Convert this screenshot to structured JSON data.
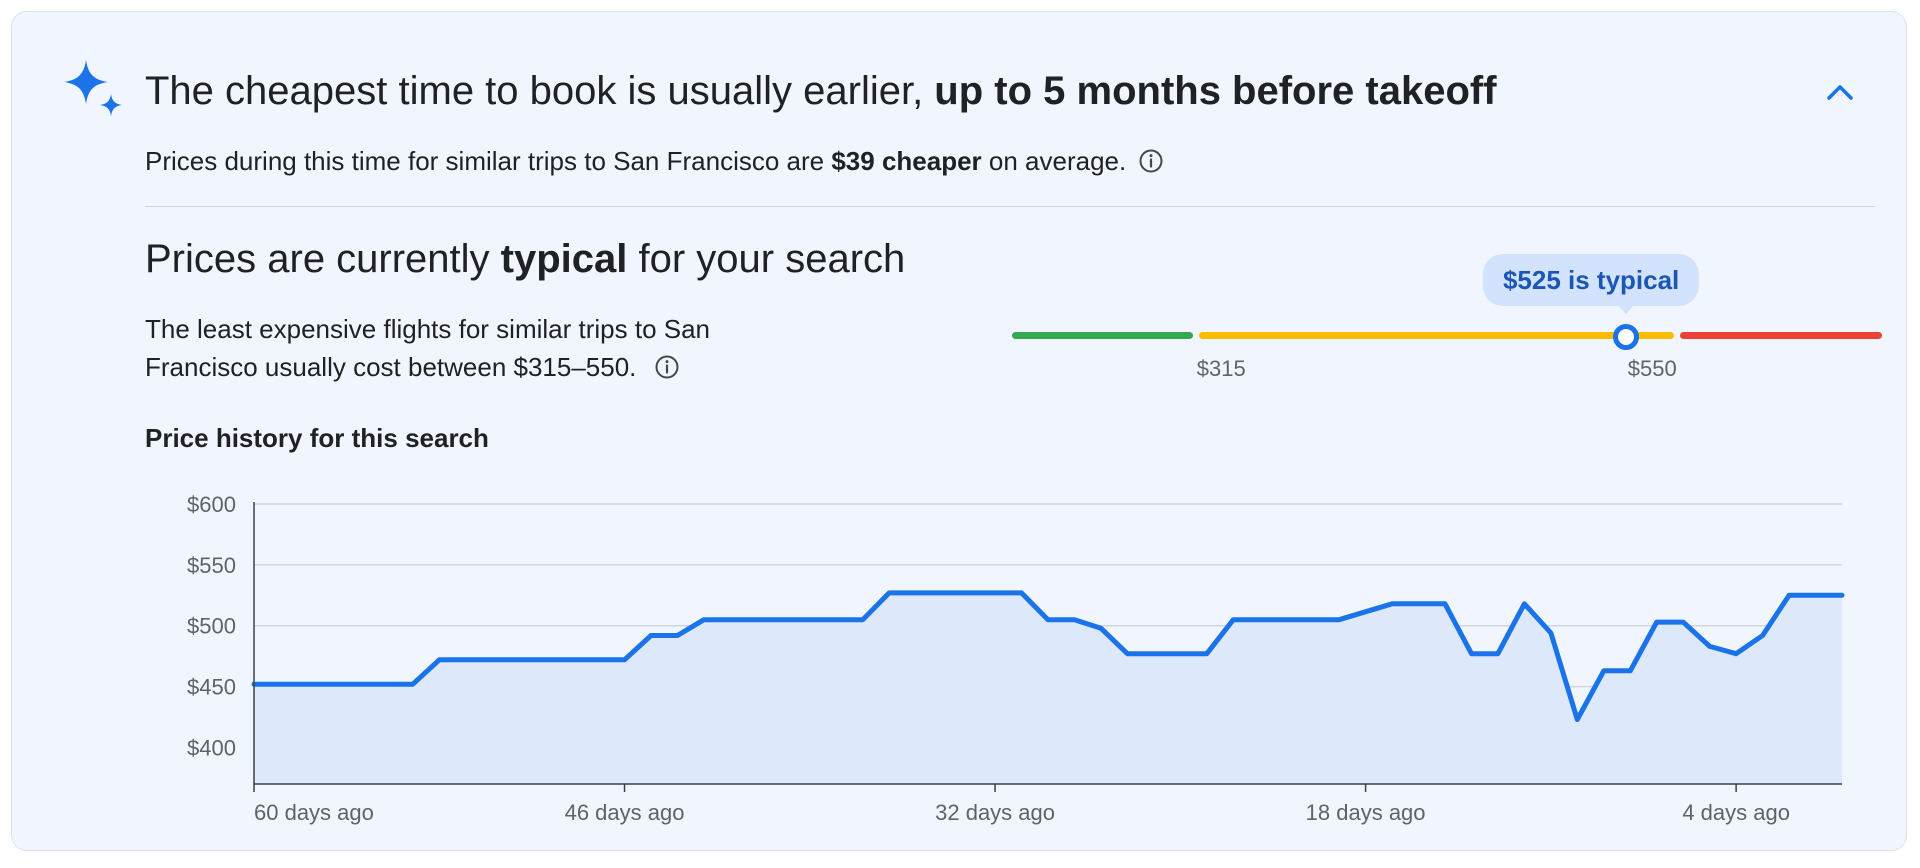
{
  "header": {
    "headline_prefix": "The cheapest time to book is usually earlier, ",
    "headline_strong": "up to 5 months before takeoff",
    "subline_prefix": "Prices during this time for similar trips to San Francisco are ",
    "subline_strong": "$39 cheaper",
    "subline_suffix": " on average.",
    "icons": {
      "sparkle": "sparkle-icon",
      "collapse": "chevron-up-icon",
      "info": "info-icon"
    }
  },
  "price_status": {
    "heading_prefix": "Prices are currently ",
    "heading_strong": "typical",
    "heading_suffix": " for your search",
    "range_text": "The least expensive flights for similar trips to San Francisco usually cost between $315–550."
  },
  "gauge": {
    "min_display": 225,
    "max_display": 650,
    "low_threshold": 315,
    "high_threshold": 550,
    "current_value": 525,
    "low_label": "$315",
    "high_label": "$550",
    "bubble_label": "$525 is typical",
    "colors": {
      "low": "#34a853",
      "typical": "#fbbc04",
      "high": "#ea4335",
      "marker": "#1a73e8"
    }
  },
  "history": {
    "title": "Price history for this search"
  },
  "chart_data": {
    "type": "area",
    "title": "Price history for this search",
    "xlabel": "",
    "ylabel": "",
    "x_unit": "days ago",
    "x_range": [
      60,
      0
    ],
    "y_range": [
      370,
      600
    ],
    "grid": true,
    "y_ticks": [
      400,
      450,
      500,
      550,
      600
    ],
    "y_tick_labels": [
      "$400",
      "$450",
      "$500",
      "$550",
      "$600"
    ],
    "x_ticks": [
      60,
      46,
      32,
      18,
      4
    ],
    "x_tick_labels": [
      "60 days ago",
      "46 days ago",
      "32 days ago",
      "18 days ago",
      "4 days ago"
    ],
    "series": [
      {
        "color": "#1a73e8",
        "fill": "#dde8fb",
        "x": [
          60,
          54,
          53,
          46,
          45,
          44,
          43,
          37,
          36,
          31,
          30,
          29,
          28,
          27,
          26,
          25,
          24,
          23,
          22,
          21,
          20,
          19,
          17,
          16,
          15,
          14,
          13,
          12,
          11,
          10,
          9,
          8,
          7,
          6,
          5,
          4,
          3,
          2,
          1,
          0
        ],
        "y": [
          452,
          452,
          472,
          472,
          492,
          492,
          505,
          505,
          527,
          527,
          505,
          505,
          498,
          477,
          477,
          477,
          477,
          505,
          505,
          505,
          505,
          505,
          518,
          518,
          518,
          477,
          477,
          518,
          494,
          423,
          463,
          463,
          503,
          503,
          483,
          477,
          492,
          525,
          525,
          525
        ]
      }
    ]
  }
}
